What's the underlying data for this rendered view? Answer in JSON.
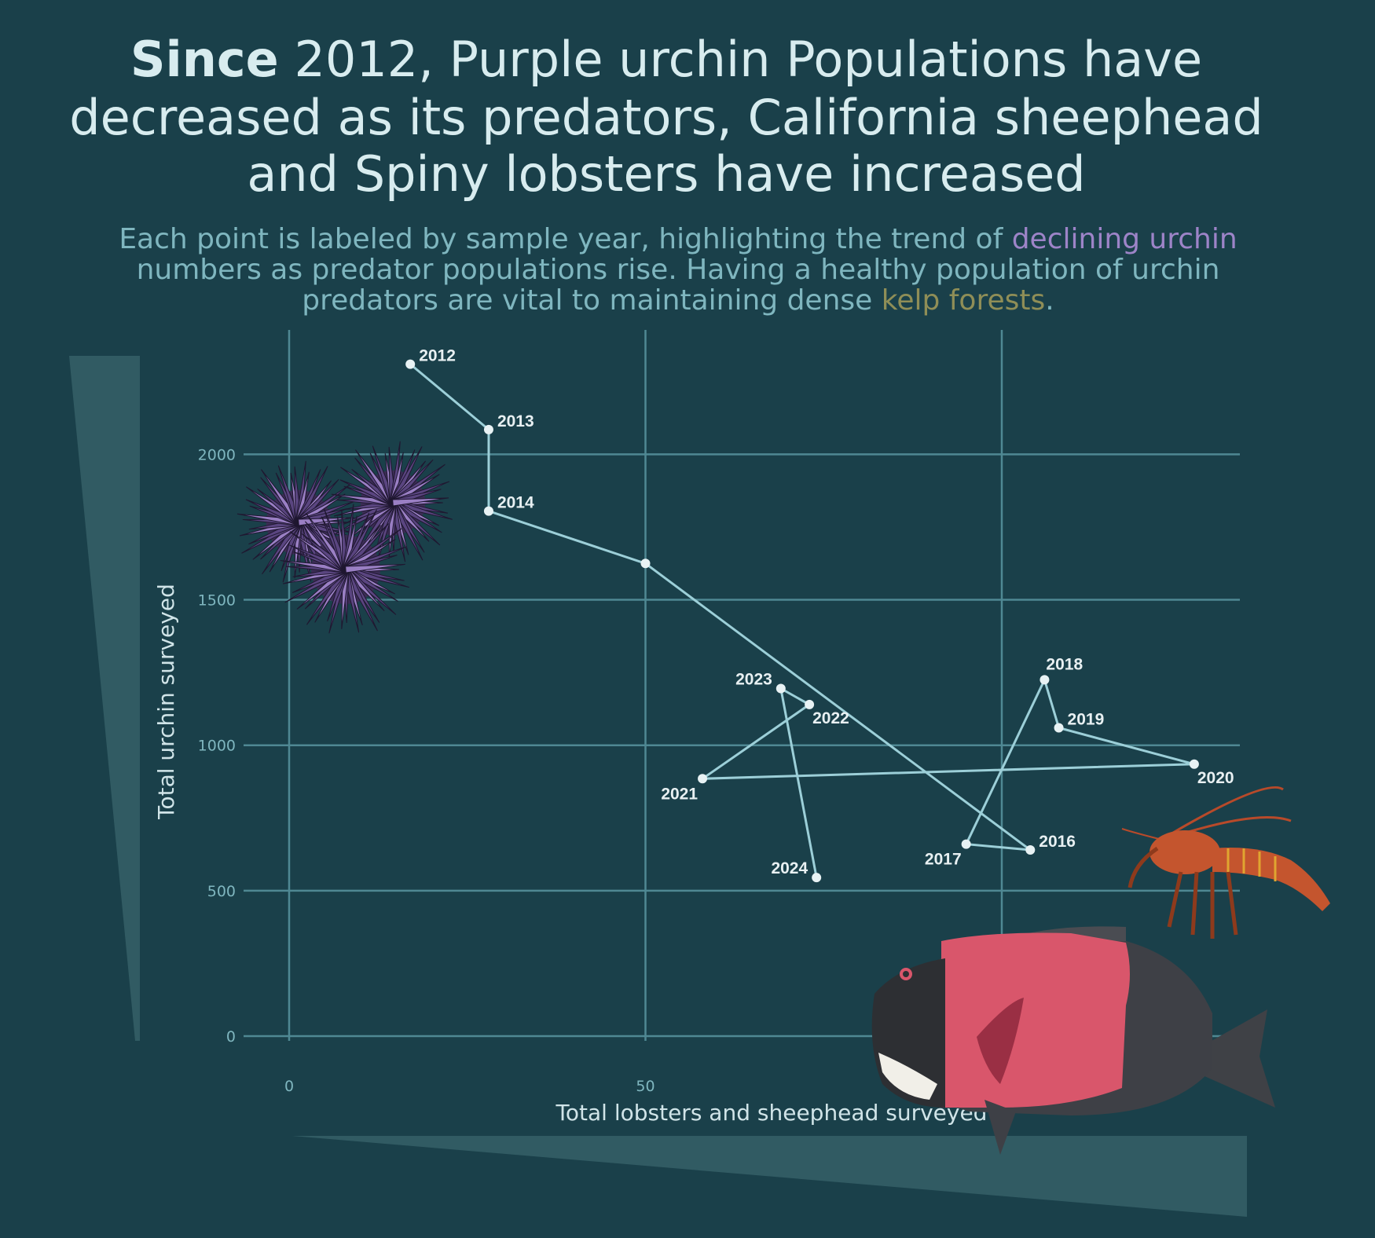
{
  "title": {
    "part1": "Since",
    "part2": " 2012, Purple urchin Populations have",
    "line2": "decreased as its predators, California sheephead",
    "line3": "and Spiny lobsters have increased"
  },
  "subtitle": {
    "line1_a": "Each point is labeled by sample year, highlighting the trend of ",
    "line1_highlight": "declining urchin",
    "line2": "numbers as predator populations rise. Having a healthy population of urchin",
    "line3_a": "predators are vital to maintaining dense ",
    "line3_highlight": "kelp forests",
    "line3_b": "."
  },
  "colors": {
    "background": "#1a404a",
    "line": "#9ccfd8",
    "urchin_highlight": "#9d84c8",
    "kelp_highlight": "#8f8e57"
  },
  "chart_data": {
    "type": "line",
    "title": "Since 2012, Purple urchin Populations have decreased as its predators, California sheephead and Spiny lobsters have increased",
    "xlabel": "Total lobsters and sheephead surveyed",
    "ylabel": "Total urchin surveyed",
    "xlim": [
      -6,
      133
    ],
    "ylim": [
      0,
      2400
    ],
    "xticks": [
      0,
      50,
      100
    ],
    "yticks": [
      0,
      500,
      1000,
      1500,
      2000
    ],
    "grid": true,
    "points": [
      {
        "year": "2012",
        "x": 17,
        "y": 2310,
        "label_pos": "right"
      },
      {
        "year": "2013",
        "x": 28,
        "y": 2085,
        "label_pos": "right"
      },
      {
        "year": "2014",
        "x": 28,
        "y": 1805,
        "label_pos": "right"
      },
      {
        "year": "",
        "x": 50,
        "y": 1625,
        "label_pos": "none"
      },
      {
        "year": "2016",
        "x": 104,
        "y": 640,
        "label_pos": "right"
      },
      {
        "year": "2017",
        "x": 95,
        "y": 660,
        "label_pos": "below-left"
      },
      {
        "year": "2018",
        "x": 106,
        "y": 1225,
        "label_pos": "above-right"
      },
      {
        "year": "2019",
        "x": 108,
        "y": 1060,
        "label_pos": "right"
      },
      {
        "year": "2020",
        "x": 127,
        "y": 935,
        "label_pos": "below-right"
      },
      {
        "year": "2021",
        "x": 58,
        "y": 885,
        "label_pos": "below-left"
      },
      {
        "year": "2022",
        "x": 73,
        "y": 1140,
        "label_pos": "below-right"
      },
      {
        "year": "2023",
        "x": 69,
        "y": 1195,
        "label_pos": "left"
      },
      {
        "year": "2024",
        "x": 74,
        "y": 545,
        "label_pos": "left"
      }
    ]
  }
}
